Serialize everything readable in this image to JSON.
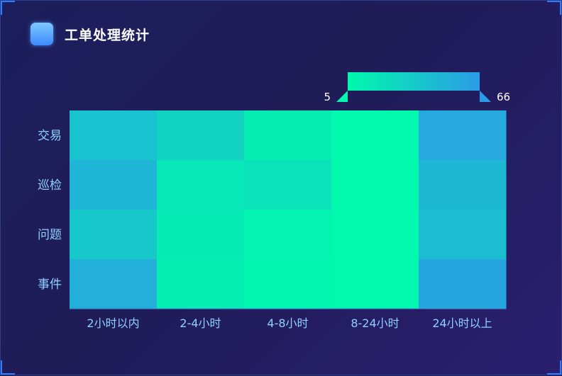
{
  "panel": {
    "title": "工单处理统计"
  },
  "chart_data": {
    "type": "heatmap",
    "title": "工单处理统计",
    "x_categories": [
      "2小时以内",
      "2-4小时",
      "4-8小时",
      "8-24小时",
      "24小时以上"
    ],
    "y_categories": [
      "交易",
      "巡检",
      "问题",
      "事件"
    ],
    "values": [
      [
        30,
        41,
        58,
        66,
        14
      ],
      [
        22,
        54,
        52,
        66,
        24
      ],
      [
        34,
        57,
        62,
        66,
        28
      ],
      [
        18,
        59,
        64,
        66,
        12
      ]
    ],
    "visual_map": {
      "min": 5,
      "max": 66,
      "min_label": "5",
      "max_label": "66",
      "color_low": "#2b9be6",
      "color_high": "#00f9ad"
    },
    "grid": false
  }
}
